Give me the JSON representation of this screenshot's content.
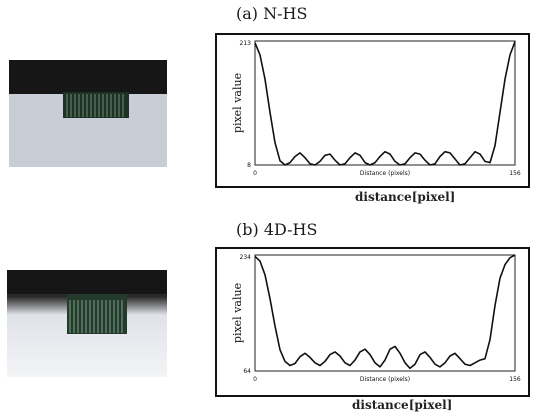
{
  "panels": [
    {
      "title": "(a) N-HS",
      "x_caption": "distance[pixel]"
    },
    {
      "title": "(b) 4D-HS",
      "x_caption": "distance[pixel]"
    }
  ],
  "chart_data": [
    {
      "type": "line",
      "title": "(a) N-HS",
      "xlabel": "Distance (pixels)",
      "ylabel": "pixel value",
      "outer_xlabel": "distance[pixel]",
      "xlim": [
        0,
        156
      ],
      "ylim": [
        8,
        213
      ],
      "x_ticks": [
        "0",
        "156"
      ],
      "y_ticks": [
        "213",
        "8"
      ],
      "grid": false,
      "color": "#111111",
      "series": [
        {
          "x": [
            0,
            3,
            6,
            9,
            12,
            15,
            18,
            21,
            24,
            27,
            30,
            33,
            36,
            39,
            42,
            45,
            48,
            51,
            54,
            57,
            60,
            63,
            66,
            69,
            72,
            75,
            78,
            81,
            84,
            87,
            90,
            93,
            96,
            99,
            102,
            105,
            108,
            111,
            114,
            117,
            120,
            123,
            126,
            129,
            132,
            135,
            138,
            141,
            144,
            147,
            150,
            153,
            156
          ],
          "y": [
            210,
            190,
            150,
            95,
            45,
            15,
            8,
            12,
            22,
            28,
            20,
            10,
            8,
            14,
            24,
            26,
            16,
            8,
            10,
            20,
            28,
            24,
            12,
            8,
            12,
            22,
            30,
            26,
            14,
            8,
            10,
            20,
            28,
            26,
            16,
            8,
            10,
            22,
            30,
            28,
            18,
            8,
            10,
            20,
            30,
            26,
            14,
            12,
            40,
            95,
            150,
            190,
            212
          ]
        }
      ]
    },
    {
      "type": "line",
      "title": "(b) 4D-HS",
      "xlabel": "Distance (pixels)",
      "ylabel": "pixel value",
      "outer_xlabel": "distance[pixel]",
      "xlim": [
        0,
        156
      ],
      "ylim": [
        64,
        234
      ],
      "x_ticks": [
        "0",
        "156"
      ],
      "y_ticks": [
        "234",
        "64"
      ],
      "grid": false,
      "color": "#111111",
      "series": [
        {
          "x": [
            0,
            3,
            6,
            9,
            12,
            15,
            18,
            21,
            24,
            27,
            30,
            33,
            36,
            39,
            42,
            45,
            48,
            51,
            54,
            57,
            60,
            63,
            66,
            69,
            72,
            75,
            78,
            81,
            84,
            87,
            90,
            93,
            96,
            99,
            102,
            105,
            108,
            111,
            114,
            117,
            120,
            123,
            126,
            129,
            132,
            135,
            138,
            141,
            144,
            147,
            150,
            153,
            156
          ],
          "y": [
            232,
            225,
            205,
            170,
            130,
            95,
            78,
            72,
            75,
            85,
            90,
            84,
            76,
            72,
            78,
            88,
            92,
            86,
            76,
            72,
            80,
            92,
            96,
            88,
            76,
            70,
            80,
            96,
            100,
            90,
            76,
            68,
            74,
            88,
            92,
            84,
            74,
            70,
            76,
            86,
            90,
            82,
            74,
            72,
            76,
            80,
            82,
            110,
            160,
            200,
            220,
            230,
            234
          ]
        }
      ]
    }
  ]
}
